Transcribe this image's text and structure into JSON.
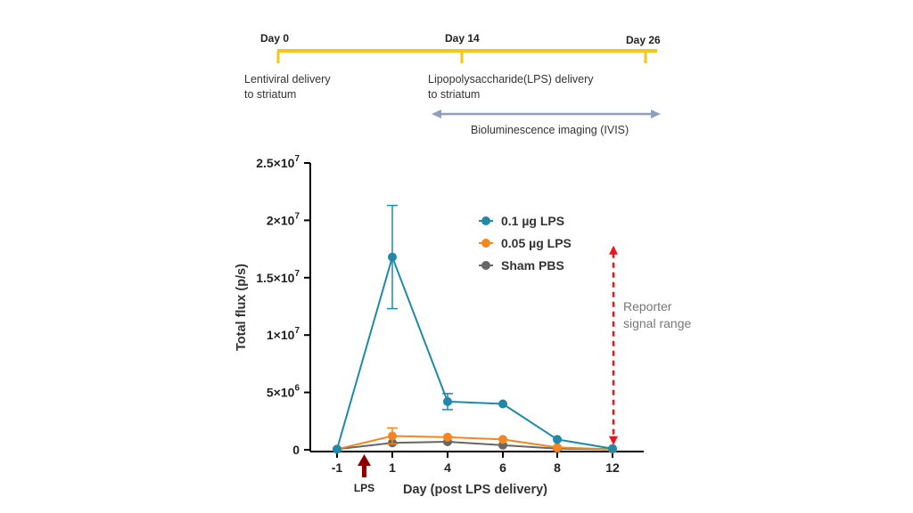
{
  "timeline": {
    "days": [
      {
        "label": "Day 0"
      },
      {
        "label": "Day 14"
      },
      {
        "label": "Day 26"
      }
    ],
    "events": [
      {
        "line1": "Lentiviral delivery",
        "line2": "to striatum"
      },
      {
        "line1": "Lipopolysaccharide(LPS) delivery",
        "line2": "to striatum"
      }
    ],
    "imaging_label": "Bioluminescence imaging (IVIS)",
    "bar_color": "#F5C518",
    "arrow_color": "#8DA0BF"
  },
  "chart_data": {
    "type": "line",
    "title": "",
    "xlabel": "Day (post LPS delivery)",
    "ylabel": "Total flux (p/s)",
    "categories": [
      "-1",
      "1",
      "4",
      "6",
      "8",
      "12"
    ],
    "ylim": [
      0,
      25000000
    ],
    "yticks": [
      {
        "value": 0,
        "mantissa": "0",
        "exp": ""
      },
      {
        "value": 5000000,
        "mantissa": "5×10",
        "exp": "6"
      },
      {
        "value": 10000000,
        "mantissa": "1×10",
        "exp": "7"
      },
      {
        "value": 15000000,
        "mantissa": "1.5×10",
        "exp": "7"
      },
      {
        "value": 20000000,
        "mantissa": "2×10",
        "exp": "7"
      },
      {
        "value": 25000000,
        "mantissa": "2.5×10",
        "exp": "7"
      }
    ],
    "grid": false,
    "legend": "upper-middle",
    "series": [
      {
        "name": "0.1 µg LPS",
        "color": "#1F8AA8",
        "values": [
          50000,
          16800000,
          4200000,
          4000000,
          900000,
          100000
        ],
        "err": [
          0,
          4500000,
          700000,
          0,
          0,
          0
        ]
      },
      {
        "name": "0.05 µg LPS",
        "color": "#F5861F",
        "values": [
          50000,
          1200000,
          1100000,
          900000,
          200000,
          50000
        ],
        "err": [
          0,
          700000,
          0,
          0,
          0,
          0
        ]
      },
      {
        "name": "Sham PBS",
        "color": "#666666",
        "values": [
          50000,
          600000,
          700000,
          400000,
          100000,
          50000
        ],
        "err": [
          0,
          0,
          0,
          0,
          0,
          0
        ]
      }
    ],
    "lps_marker": {
      "label": "LPS",
      "color": "#8B0000"
    },
    "range_annotation": {
      "line1": "Reporter",
      "line2": "signal range",
      "color": "#E8151B",
      "from": 100000,
      "to": 17800000
    }
  }
}
